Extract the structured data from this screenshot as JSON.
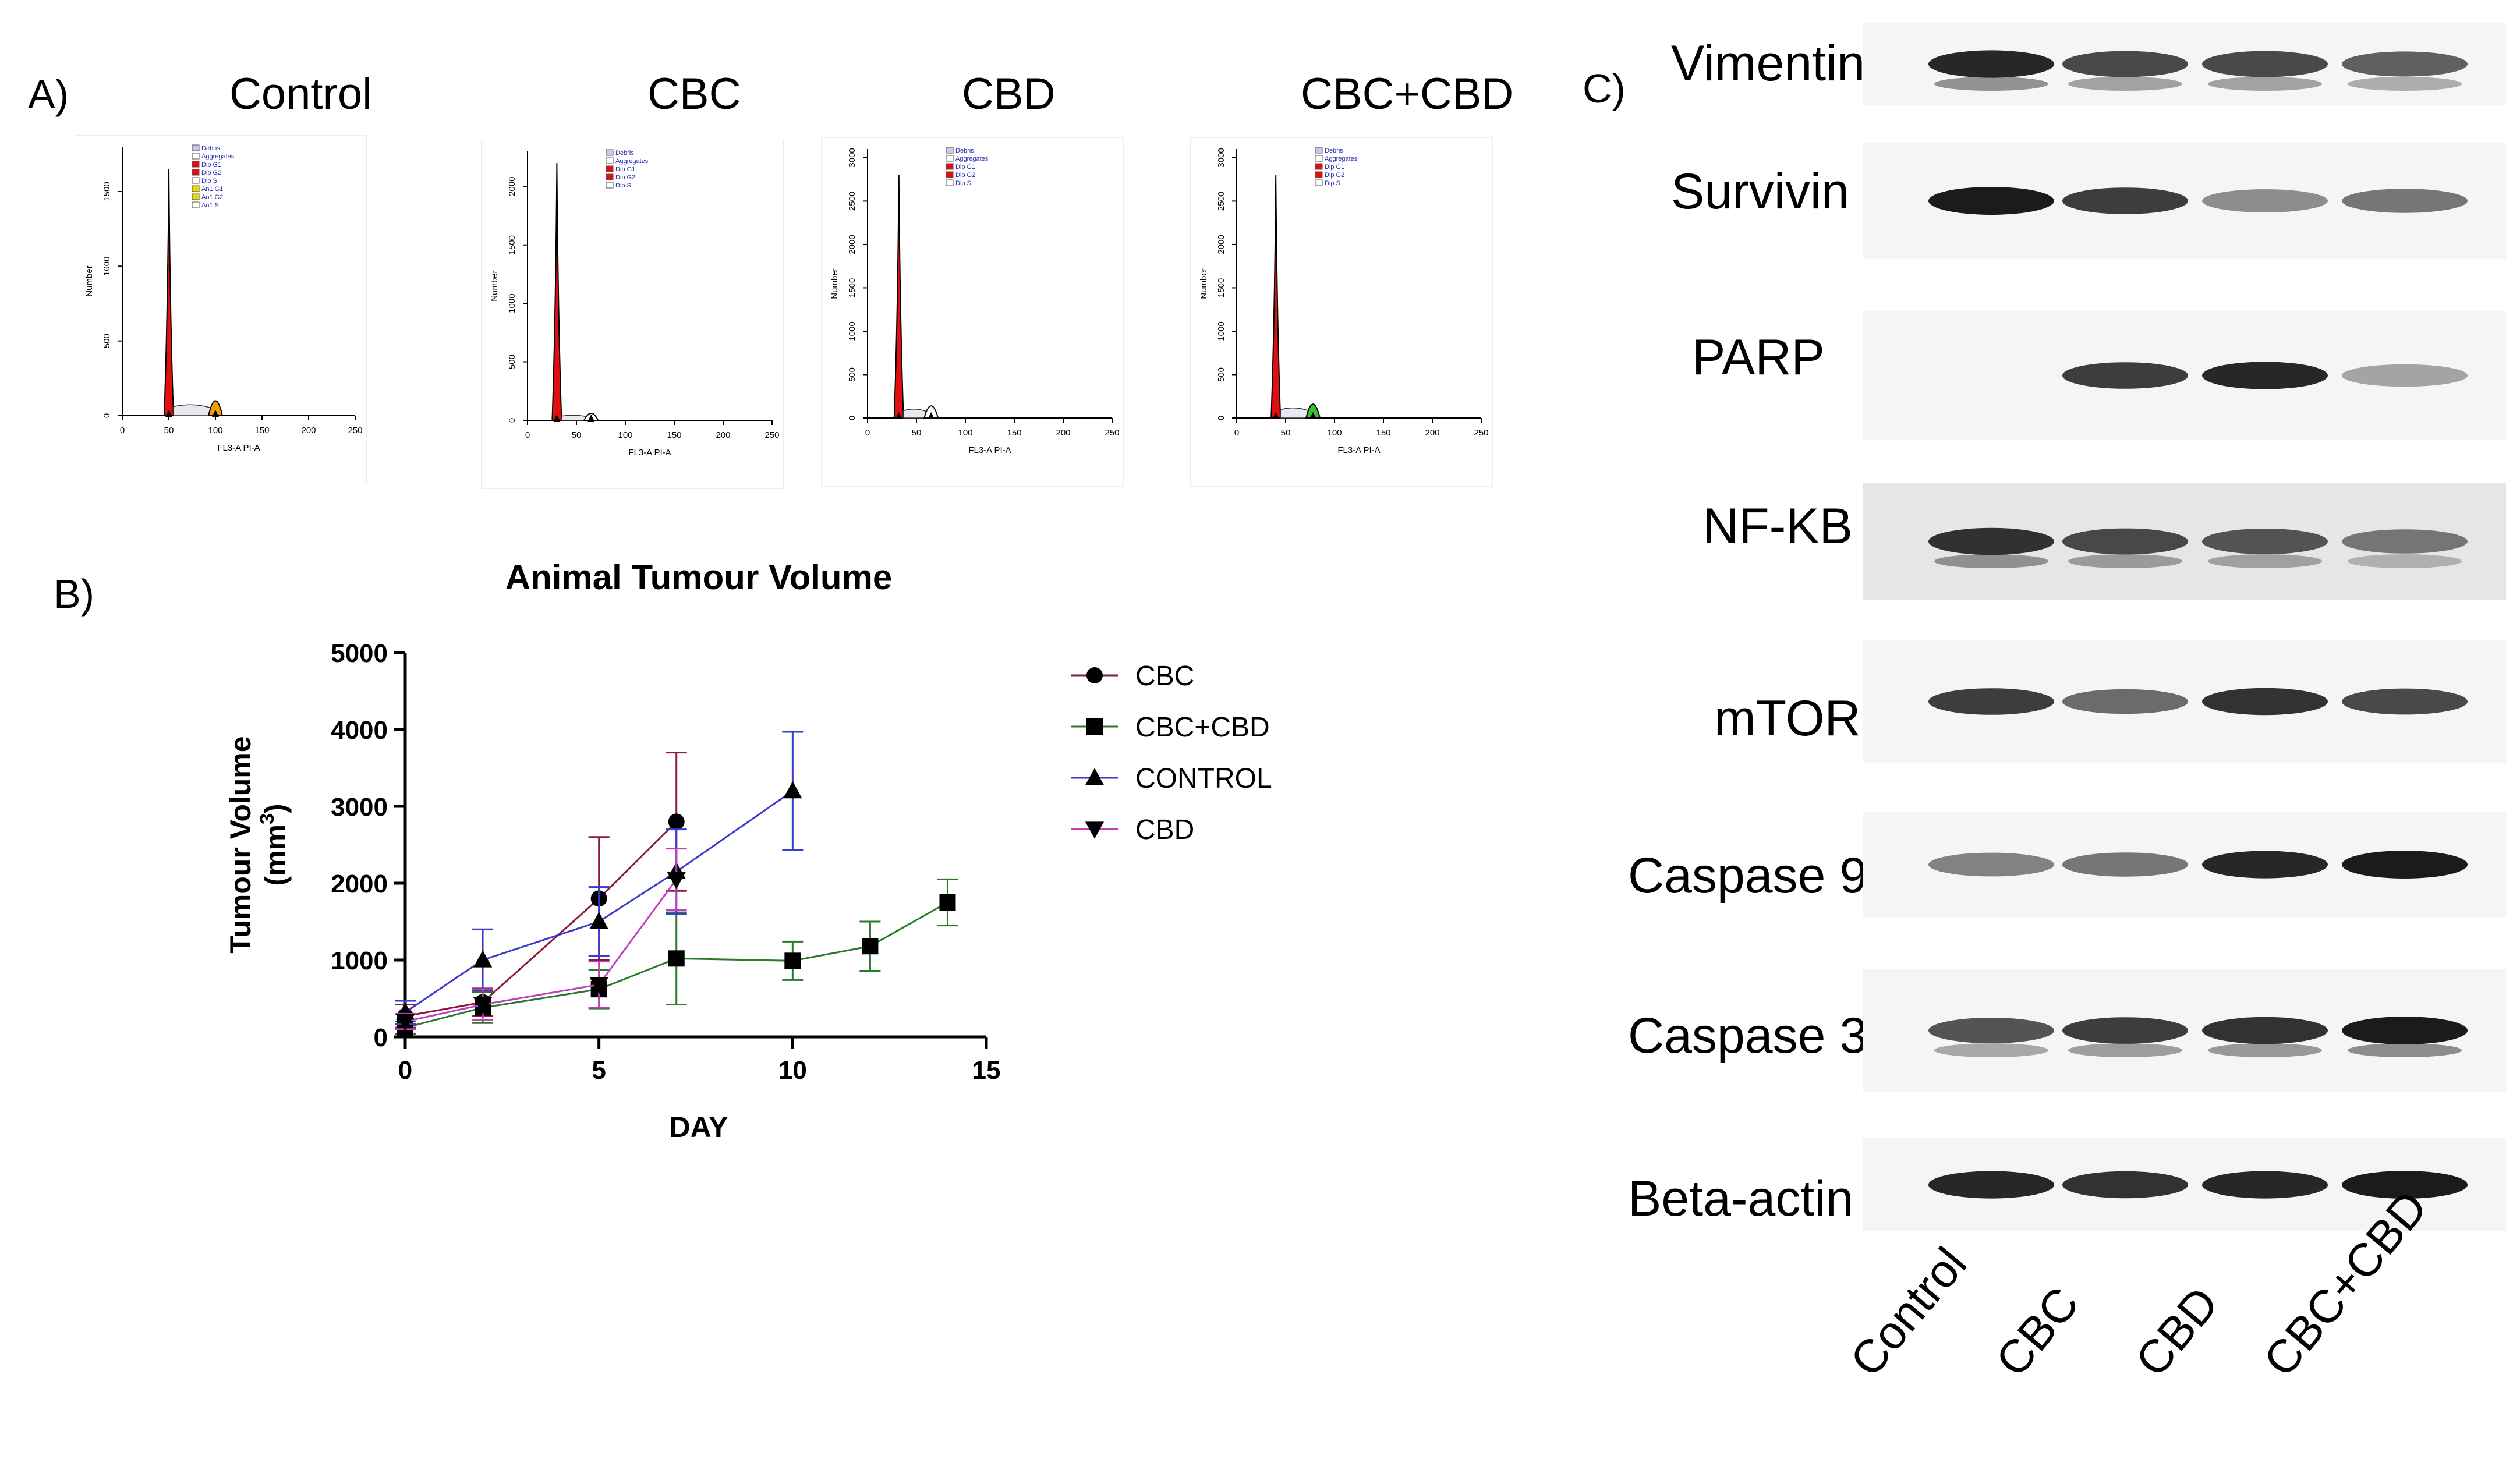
{
  "panels": {
    "a": {
      "letter": "A)",
      "titles": [
        "Control",
        "CBC",
        "CBD",
        "CBC+CBD"
      ],
      "histograms": [
        {
          "xlabel": "FL3-A PI-A",
          "ylabel": "Number",
          "xticks": [
            "0",
            "50",
            "100",
            "150",
            "200",
            "250"
          ],
          "yticks": [
            "0",
            "500",
            "1000",
            "1500"
          ],
          "ymax": 1800,
          "legend": [
            "Debris",
            "Aggregates",
            "Dip G1",
            "Dip G2",
            "Dip S",
            "An1 G1",
            "An1 G2",
            "An1 S"
          ],
          "legend_colors": [
            "#c9c9e8",
            "#ffffff",
            "#e01010",
            "#e01010",
            "#ffffff",
            "#e8d800",
            "#e8d800",
            "#ffffff"
          ],
          "g1_peak": 1650,
          "g1_pos": 50,
          "g2_peak": 100,
          "g2_pos": 100,
          "g2_color": "#f0a000"
        },
        {
          "xlabel": "FL3-A PI-A",
          "ylabel": "Number",
          "xticks": [
            "0",
            "50",
            "100",
            "150",
            "200",
            "250"
          ],
          "yticks": [
            "0",
            "500",
            "1000",
            "1500",
            "2000"
          ],
          "ymax": 2300,
          "legend": [
            "Debris",
            "Aggregates",
            "Dip G1",
            "Dip G2",
            "Dip S"
          ],
          "legend_colors": [
            "#c9c9e8",
            "#ffffff",
            "#e01010",
            "#e01010",
            "#ffffff"
          ],
          "g1_peak": 2200,
          "g1_pos": 30,
          "g2_peak": 60,
          "g2_pos": 65,
          "g2_color": "#ffffff"
        },
        {
          "xlabel": "FL3-A PI-A",
          "ylabel": "Number",
          "xticks": [
            "0",
            "50",
            "100",
            "150",
            "200",
            "250"
          ],
          "yticks": [
            "0",
            "500",
            "1000",
            "1500",
            "2000",
            "2500",
            "3000"
          ],
          "ymax": 3100,
          "legend": [
            "Debris",
            "Aggregates",
            "Dip G1",
            "Dip G2",
            "Dip S"
          ],
          "legend_colors": [
            "#c9c9e8",
            "#ffffff",
            "#e01010",
            "#e01010",
            "#ffffff"
          ],
          "g1_peak": 2800,
          "g1_pos": 32,
          "g2_peak": 140,
          "g2_pos": 65,
          "g2_color": "#ffffff"
        },
        {
          "xlabel": "FL3-A PI-A",
          "ylabel": "Number",
          "xticks": [
            "0",
            "50",
            "100",
            "150",
            "200",
            "250"
          ],
          "yticks": [
            "0",
            "500",
            "1000",
            "1500",
            "2000",
            "2500",
            "3000"
          ],
          "ymax": 3100,
          "legend": [
            "Debris",
            "Aggregates",
            "Dip G1",
            "Dip G2",
            "Dip S"
          ],
          "legend_colors": [
            "#c9c9e8",
            "#ffffff",
            "#e01010",
            "#e01010",
            "#ffffff"
          ],
          "g1_peak": 2800,
          "g1_pos": 40,
          "g2_peak": 160,
          "g2_pos": 78,
          "g2_color": "#30c030"
        }
      ]
    },
    "b": {
      "letter": "B)"
    },
    "c": {
      "letter": "C)",
      "proteins": [
        "Vimentin",
        "Survivin",
        "PARP",
        "NF-KB",
        "mTOR",
        "Caspase 9",
        "Caspase 3",
        "Beta-actin"
      ],
      "lanes": [
        "Control",
        "CBC",
        "CBD",
        "CBC+CBD"
      ],
      "band_intensity": [
        [
          0.95,
          0.8,
          0.8,
          0.7
        ],
        [
          1.0,
          0.85,
          0.5,
          0.6
        ],
        [
          0.0,
          0.85,
          0.95,
          0.4
        ],
        [
          0.9,
          0.8,
          0.75,
          0.6
        ],
        [
          0.85,
          0.65,
          0.9,
          0.8
        ],
        [
          0.55,
          0.6,
          0.95,
          1.0
        ],
        [
          0.75,
          0.85,
          0.9,
          1.0
        ],
        [
          0.95,
          0.9,
          0.95,
          1.0
        ]
      ]
    }
  },
  "chart_data": {
    "type": "line",
    "title": "Animal Tumour Volume",
    "xlabel": "DAY",
    "ylabel_main": "Tumour Volume",
    "ylabel_unit_pre": "(mm",
    "ylabel_unit_sup": "3",
    "ylabel_unit_post": ")",
    "xlim": [
      0,
      15
    ],
    "ylim": [
      0,
      5000
    ],
    "xticks": [
      "0",
      "5",
      "10",
      "15"
    ],
    "yticks": [
      "0",
      "1000",
      "2000",
      "3000",
      "4000",
      "5000"
    ],
    "legend_position": "right",
    "series": [
      {
        "name": "CBC",
        "color": "#8b1a3c",
        "marker": "circle",
        "x": [
          0,
          2,
          5,
          7
        ],
        "y": [
          270,
          450,
          1800,
          2800
        ],
        "err": [
          150,
          180,
          800,
          900
        ]
      },
      {
        "name": "CBC+CBD",
        "color": "#2a7a2a",
        "marker": "square",
        "x": [
          0,
          2,
          5,
          7,
          10,
          12,
          14
        ],
        "y": [
          120,
          380,
          620,
          1020,
          990,
          1180,
          1750
        ],
        "err": [
          80,
          200,
          250,
          600,
          250,
          320,
          300
        ]
      },
      {
        "name": "CONTROL",
        "color": "#3a3acc",
        "marker": "triangle-up",
        "x": [
          0,
          2,
          5,
          7,
          10
        ],
        "y": [
          320,
          1000,
          1500,
          2150,
          3200
        ],
        "err": [
          150,
          400,
          450,
          550,
          770
        ]
      },
      {
        "name": "CBD",
        "color": "#c040c0",
        "marker": "triangle-down",
        "x": [
          0,
          2,
          5,
          7
        ],
        "y": [
          200,
          420,
          680,
          2050
        ],
        "err": [
          100,
          200,
          300,
          400
        ]
      }
    ]
  }
}
